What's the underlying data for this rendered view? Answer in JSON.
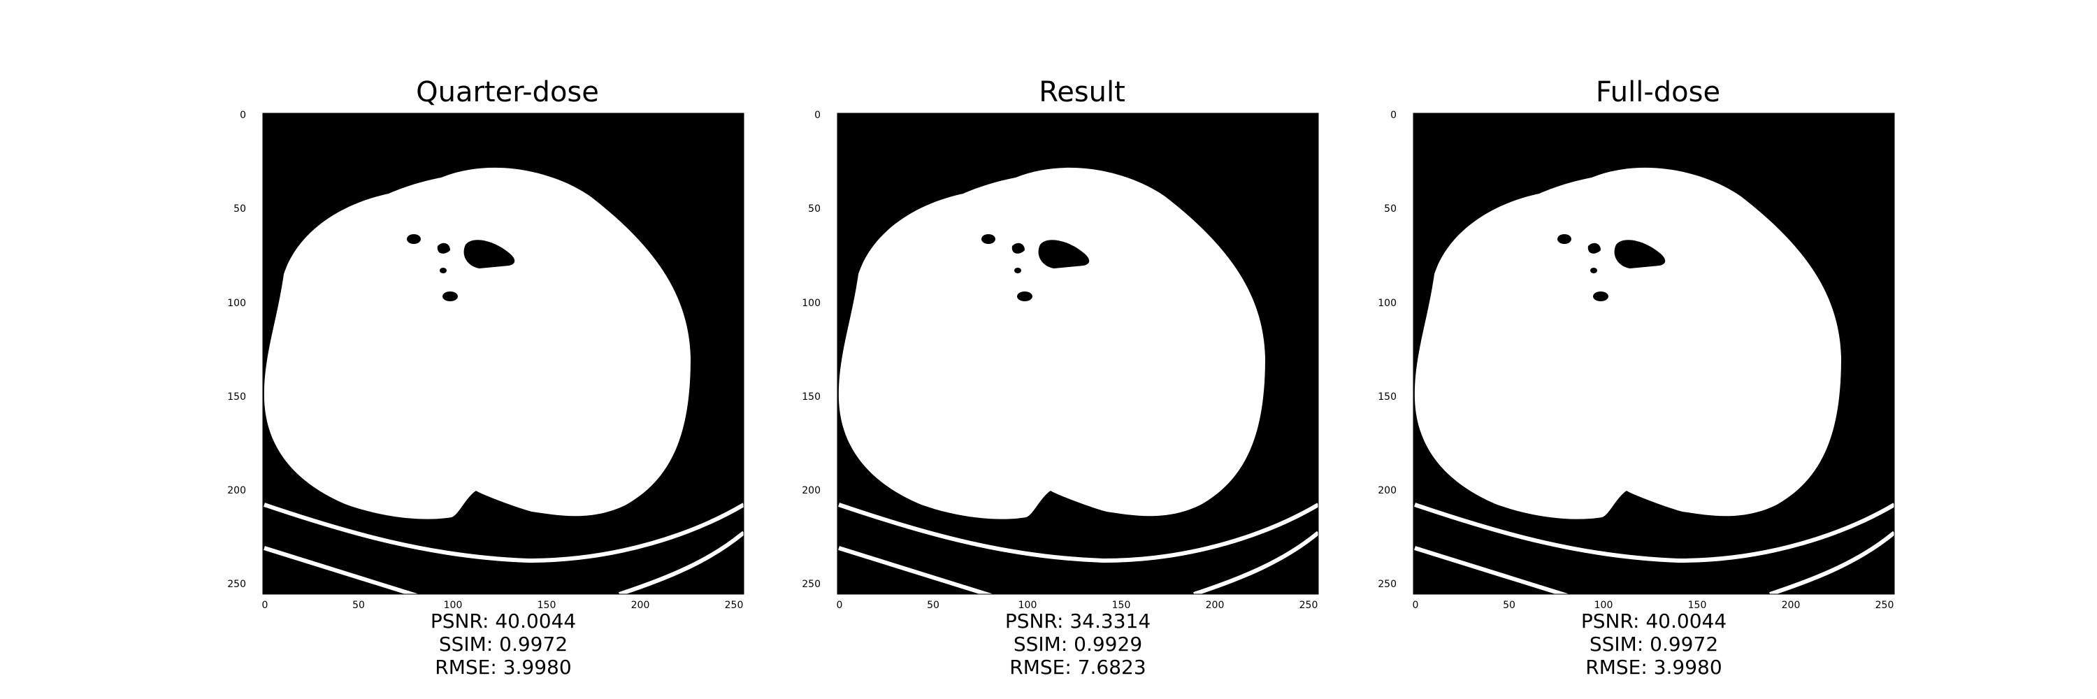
{
  "panels": [
    {
      "title": "Quarter-dose",
      "metrics": {
        "psnr": "PSNR: 40.0044",
        "ssim": "SSIM: 0.9972",
        "rmse": "RMSE: 3.9980"
      }
    },
    {
      "title": "Result",
      "metrics": {
        "psnr": "PSNR: 34.3314",
        "ssim": "SSIM: 0.9929",
        "rmse": "RMSE: 7.6823"
      }
    },
    {
      "title": "Full-dose",
      "metrics": {
        "psnr": "PSNR: 40.0044",
        "ssim": "SSIM: 0.9972",
        "rmse": "RMSE: 3.9980"
      }
    }
  ],
  "axis": {
    "x_ticks": [
      "0",
      "50",
      "100",
      "150",
      "200",
      "250"
    ],
    "y_ticks": [
      "0",
      "50",
      "100",
      "150",
      "200",
      "250"
    ]
  },
  "colors": {
    "image_background": "#000000",
    "anatomy": "#ffffff"
  }
}
